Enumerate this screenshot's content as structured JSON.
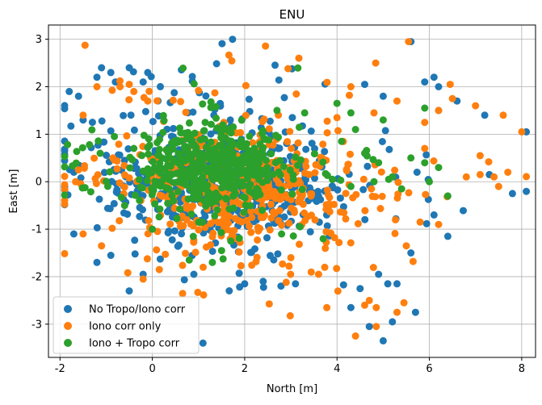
{
  "chart_data": {
    "type": "scatter",
    "title": "ENU",
    "xlabel": "North [m]",
    "ylabel": "East [m]",
    "xlim": [
      -2.25,
      8.3
    ],
    "ylim": [
      -3.7,
      3.3
    ],
    "xticks": [
      -2,
      0,
      2,
      4,
      6,
      8
    ],
    "yticks": [
      -3,
      -2,
      -1,
      0,
      1,
      2,
      3
    ],
    "grid": true,
    "legend_position": "lower-left",
    "series": [
      {
        "name": "No Tropo/Iono corr",
        "color": "#1f77b4",
        "center": [
          1.4,
          0.0
        ],
        "spread": [
          1.6,
          1.0
        ],
        "count": 560,
        "extras": [
          [
            -1.1,
            2.4
          ],
          [
            -0.9,
            2.3
          ],
          [
            -0.5,
            2.4
          ],
          [
            -1.2,
            2.2
          ],
          [
            -0.8,
            2.1
          ],
          [
            -0.1,
            2.3
          ],
          [
            -1.8,
            1.9
          ],
          [
            -1.6,
            1.8
          ],
          [
            -1.5,
            1.3
          ],
          [
            -1.7,
            -1.1
          ],
          [
            -1.7,
            0.2
          ],
          [
            5.6,
            2.95
          ],
          [
            5.9,
            2.1
          ],
          [
            6.1,
            2.2
          ],
          [
            6.2,
            2.0
          ],
          [
            7.2,
            1.4
          ],
          [
            8.1,
            1.05
          ],
          [
            7.8,
            -0.25
          ],
          [
            7.3,
            0.15
          ],
          [
            6.4,
            -1.15
          ],
          [
            5.6,
            -1.5
          ],
          [
            5.7,
            -2.75
          ],
          [
            5.0,
            -3.35
          ],
          [
            5.2,
            -2.95
          ],
          [
            4.7,
            -3.05
          ],
          [
            4.3,
            -2.65
          ],
          [
            4.5,
            -2.25
          ],
          [
            5.1,
            -2.15
          ],
          [
            5.3,
            -2.15
          ],
          [
            3.1,
            -2.15
          ],
          [
            2.0,
            -2.15
          ],
          [
            2.4,
            -2.1
          ],
          [
            0.9,
            -1.95
          ],
          [
            -0.2,
            -1.95
          ],
          [
            -0.5,
            -2.3
          ],
          [
            -1.2,
            -1.7
          ],
          [
            -0.9,
            -1.55
          ],
          [
            4.6,
            2.05
          ],
          [
            5.0,
            1.8
          ],
          [
            6.2,
            1.5
          ],
          [
            6.6,
            1.7
          ],
          [
            4.9,
            -1.95
          ],
          [
            6.1,
            -0.7
          ],
          [
            -0.2,
            2.1
          ]
        ]
      },
      {
        "name": "Iono corr only",
        "color": "#ff7f0e",
        "center": [
          1.9,
          -0.1
        ],
        "spread": [
          1.6,
          1.0
        ],
        "count": 500,
        "extras": [
          [
            -1.2,
            2.0
          ],
          [
            -0.7,
            2.0
          ],
          [
            -0.4,
            1.9
          ],
          [
            -0.1,
            1.7
          ],
          [
            -0.5,
            2.05
          ],
          [
            5.55,
            2.95
          ],
          [
            6.45,
            2.05
          ],
          [
            6.5,
            1.75
          ],
          [
            7.0,
            1.6
          ],
          [
            7.6,
            1.4
          ],
          [
            8.0,
            1.05
          ],
          [
            7.7,
            0.2
          ],
          [
            7.1,
            0.15
          ],
          [
            6.8,
            0.1
          ],
          [
            7.1,
            0.55
          ],
          [
            7.4,
            0.1
          ],
          [
            7.5,
            -0.1
          ],
          [
            4.4,
            -3.25
          ],
          [
            4.6,
            -2.6
          ],
          [
            4.85,
            -2.65
          ],
          [
            4.85,
            -3.05
          ],
          [
            5.3,
            -2.75
          ],
          [
            5.45,
            -2.55
          ],
          [
            4.7,
            -2.5
          ],
          [
            3.6,
            -1.95
          ],
          [
            3.0,
            -1.6
          ],
          [
            1.1,
            -1.8
          ],
          [
            0.15,
            -1.85
          ],
          [
            -0.2,
            -2.05
          ],
          [
            -1.1,
            -1.35
          ],
          [
            -1.6,
            0.25
          ],
          [
            -1.5,
            -1.1
          ],
          [
            -1.5,
            1.4
          ],
          [
            4.0,
            1.35
          ],
          [
            4.3,
            2.0
          ],
          [
            4.8,
            1.45
          ],
          [
            5.3,
            1.7
          ],
          [
            5.9,
            1.25
          ],
          [
            6.2,
            1.5
          ],
          [
            5.9,
            0.7
          ],
          [
            5.5,
            -1.35
          ],
          [
            5.8,
            -0.85
          ],
          [
            6.2,
            -0.9
          ]
        ]
      },
      {
        "name": "Iono + Tropo corr",
        "color": "#2ca02c",
        "center": [
          1.3,
          0.3
        ],
        "spread": [
          1.0,
          0.6
        ],
        "count": 520,
        "extras": [
          [
            2.7,
            1.5
          ],
          [
            3.3,
            1.45
          ],
          [
            4.0,
            1.65
          ],
          [
            4.3,
            1.45
          ],
          [
            4.4,
            1.1
          ],
          [
            4.1,
            0.85
          ],
          [
            4.6,
            0.6
          ],
          [
            4.9,
            0.4
          ],
          [
            5.2,
            0.1
          ],
          [
            5.4,
            -0.15
          ],
          [
            5.6,
            0.5
          ],
          [
            5.9,
            0.4
          ],
          [
            6.0,
            0.0
          ],
          [
            5.9,
            1.55
          ],
          [
            6.2,
            0.3
          ],
          [
            6.4,
            -0.3
          ],
          [
            5.0,
            1.3
          ],
          [
            3.7,
            -1.2
          ],
          [
            3.2,
            -0.95
          ],
          [
            2.8,
            -1.1
          ],
          [
            1.7,
            -1.25
          ],
          [
            1.5,
            -1.45
          ],
          [
            1.3,
            -1.7
          ],
          [
            0.8,
            -1.65
          ],
          [
            0.0,
            -1.0
          ],
          [
            -0.4,
            0.7
          ],
          [
            -0.6,
            -0.5
          ],
          [
            4.8,
            0.0
          ],
          [
            4.3,
            -0.1
          ],
          [
            3.9,
            0.05
          ]
        ]
      }
    ]
  }
}
